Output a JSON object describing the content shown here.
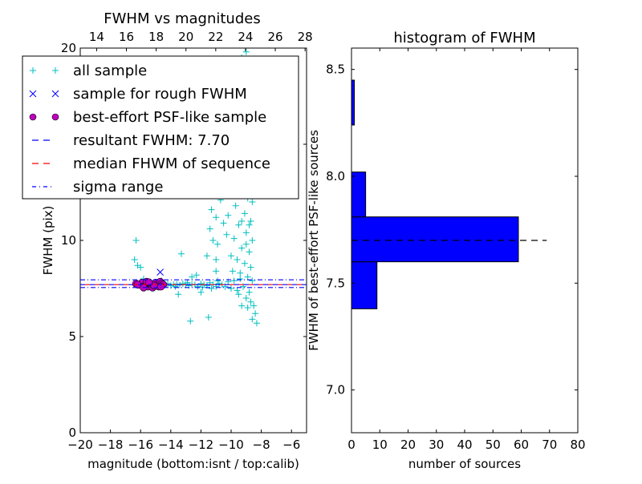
{
  "chart_data": [
    {
      "type": "scatter",
      "title": "FWHM vs magnitudes",
      "xlabel": "magnitude (bottom:isnt / top:calib)",
      "ylabel": "FWHM (pix)",
      "xlim": [
        -20,
        -5
      ],
      "ylim": [
        0,
        20
      ],
      "top_xlim": [
        12.9,
        28.1
      ],
      "xticks": [
        "−20",
        "−18",
        "−16",
        "−14",
        "−12",
        "−10",
        "−8",
        "−6"
      ],
      "xtick_values": [
        -20,
        -18,
        -16,
        -14,
        -12,
        -10,
        -8,
        -6
      ],
      "top_xticks": [
        "14",
        "16",
        "18",
        "20",
        "22",
        "24",
        "26",
        "28"
      ],
      "top_xtick_values": [
        14,
        16,
        18,
        20,
        22,
        24,
        26,
        28
      ],
      "yticks": [
        "0",
        "5",
        "10",
        "15",
        "20"
      ],
      "ytick_values": [
        0,
        5,
        10,
        15,
        20
      ],
      "legend_placement": "upper-left",
      "legend": [
        {
          "label": "all sample",
          "marker": "+",
          "color": "#00bfbf"
        },
        {
          "label": "sample for rough FWHM",
          "marker": "x",
          "color": "#0000ff"
        },
        {
          "label": "best-effort PSF-like sample",
          "marker": "o",
          "color": "#bf00bf"
        },
        {
          "label": "resultant FWHM: 7.70",
          "marker": "dashed",
          "color": "#0000ff"
        },
        {
          "label": "median FHWM of sequence",
          "marker": "dashed",
          "color": "#ff0000"
        },
        {
          "label": "sigma range",
          "marker": "dashdot",
          "color": "#0000ff"
        }
      ],
      "hlines": {
        "resultant": 7.7,
        "median": 7.7,
        "sigma_low": 7.55,
        "sigma_high": 7.95
      },
      "series": [
        {
          "name": "all sample",
          "color": "#00bfbf",
          "points": [
            [
              -16.3,
              10.0
            ],
            [
              -16.4,
              9.0
            ],
            [
              -16.2,
              8.7
            ],
            [
              -16.0,
              8.6
            ],
            [
              -15.8,
              8.0
            ],
            [
              -13.3,
              9.3
            ],
            [
              -12.7,
              5.8
            ],
            [
              -11.5,
              6.0
            ],
            [
              -13.5,
              7.2
            ],
            [
              -14.6,
              7.9
            ],
            [
              -12.0,
              7.3
            ],
            [
              -11.0,
              8.4
            ],
            [
              -12.3,
              8.2
            ],
            [
              -12.6,
              8.1
            ],
            [
              -14.4,
              7.7
            ],
            [
              -14.2,
              7.75
            ],
            [
              -14.0,
              7.65
            ],
            [
              -13.8,
              7.7
            ],
            [
              -13.6,
              7.72
            ],
            [
              -13.4,
              7.68
            ],
            [
              -13.2,
              7.75
            ],
            [
              -13.0,
              7.7
            ],
            [
              -12.8,
              7.65
            ],
            [
              -12.6,
              7.72
            ],
            [
              -12.4,
              7.7
            ],
            [
              -12.2,
              7.6
            ],
            [
              -12.0,
              7.75
            ],
            [
              -11.8,
              7.7
            ],
            [
              -11.6,
              7.65
            ],
            [
              -11.4,
              7.8
            ],
            [
              -11.2,
              7.7
            ],
            [
              -11.0,
              7.6
            ],
            [
              -10.8,
              7.75
            ],
            [
              -10.6,
              7.7
            ],
            [
              -10.4,
              7.6
            ],
            [
              -10.2,
              7.85
            ],
            [
              -10.0,
              7.5
            ],
            [
              -9.8,
              7.9
            ],
            [
              -9.6,
              7.4
            ],
            [
              -9.4,
              8.0
            ],
            [
              -11.9,
              7.55
            ],
            [
              -12.9,
              7.8
            ],
            [
              -13.7,
              7.6
            ],
            [
              -10.9,
              7.9
            ],
            [
              -11.3,
              7.5
            ],
            [
              -12.4,
              12.4
            ],
            [
              -11.7,
              12.4
            ],
            [
              -11.3,
              11.6
            ],
            [
              -11.0,
              11.2
            ],
            [
              -10.7,
              12.1
            ],
            [
              -11.4,
              10.6
            ],
            [
              -11.2,
              10.0
            ],
            [
              -10.9,
              9.8
            ],
            [
              -10.5,
              10.9
            ],
            [
              -11.6,
              9.2
            ],
            [
              -11.0,
              9.0
            ],
            [
              -10.0,
              18.0
            ],
            [
              -9.8,
              17.5
            ],
            [
              -9.3,
              19.5
            ],
            [
              -9.0,
              19.8
            ],
            [
              -8.9,
              18.4
            ],
            [
              -9.6,
              16.8
            ],
            [
              -9.2,
              16.3
            ],
            [
              -8.7,
              17.0
            ],
            [
              -10.3,
              15.8
            ],
            [
              -9.5,
              15.2
            ],
            [
              -9.0,
              15.0
            ],
            [
              -8.8,
              14.2
            ],
            [
              -9.8,
              14.0
            ],
            [
              -9.3,
              13.6
            ],
            [
              -8.6,
              13.2
            ],
            [
              -10.1,
              13.0
            ],
            [
              -9.4,
              12.5
            ],
            [
              -8.9,
              12.2
            ],
            [
              -9.7,
              11.8
            ],
            [
              -9.1,
              11.4
            ],
            [
              -8.7,
              11.0
            ],
            [
              -10.2,
              11.3
            ],
            [
              -9.5,
              10.8
            ],
            [
              -9.0,
              10.4
            ],
            [
              -8.6,
              10.0
            ],
            [
              -9.8,
              10.1
            ],
            [
              -9.3,
              9.6
            ],
            [
              -8.8,
              9.4
            ],
            [
              -10.0,
              9.2
            ],
            [
              -9.6,
              9.0
            ],
            [
              -9.1,
              8.8
            ],
            [
              -8.7,
              8.6
            ],
            [
              -9.9,
              8.4
            ],
            [
              -9.4,
              8.3
            ],
            [
              -8.9,
              8.1
            ],
            [
              -8.6,
              7.9
            ],
            [
              -9.2,
              7.6
            ],
            [
              -8.8,
              7.3
            ],
            [
              -9.5,
              7.2
            ],
            [
              -9.0,
              7.0
            ],
            [
              -8.7,
              6.8
            ],
            [
              -9.3,
              6.6
            ],
            [
              -8.9,
              6.5
            ],
            [
              -8.5,
              6.6
            ],
            [
              -8.4,
              6.2
            ],
            [
              -8.6,
              5.9
            ],
            [
              -8.3,
              5.7
            ],
            [
              -9.6,
              12.8
            ],
            [
              -9.2,
              14.6
            ],
            [
              -8.9,
              16.0
            ],
            [
              -9.4,
              17.8
            ],
            [
              -9.7,
              13.3
            ],
            [
              -8.8,
              10.8
            ],
            [
              -9.0,
              9.8
            ],
            [
              -8.6,
              12.0
            ],
            [
              -9.3,
              11.0
            ],
            [
              -10.4,
              12.5
            ],
            [
              -10.6,
              14.1
            ],
            [
              -10.3,
              10.3
            ]
          ]
        },
        {
          "name": "sample for rough FWHM",
          "color": "#0000ff",
          "points": [
            [
              -14.7,
              8.35
            ]
          ]
        },
        {
          "name": "best-effort PSF-like sample",
          "color": "#bf00bf",
          "points": [
            [
              -16.3,
              7.75
            ],
            [
              -16.1,
              7.7
            ],
            [
              -15.9,
              7.8
            ],
            [
              -15.7,
              7.65
            ],
            [
              -15.6,
              7.85
            ],
            [
              -15.5,
              7.6
            ],
            [
              -15.4,
              7.75
            ],
            [
              -15.3,
              7.7
            ],
            [
              -15.2,
              7.55
            ],
            [
              -15.0,
              7.8
            ],
            [
              -14.9,
              7.7
            ],
            [
              -14.8,
              7.6
            ],
            [
              -14.7,
              7.85
            ],
            [
              -14.6,
              7.75
            ],
            [
              -14.5,
              7.7
            ],
            [
              -15.8,
              7.55
            ],
            [
              -15.1,
              7.65
            ],
            [
              -14.65,
              7.6
            ],
            [
              -16.2,
              7.7
            ],
            [
              -15.45,
              7.82
            ]
          ]
        }
      ]
    },
    {
      "type": "bar",
      "orientation": "horizontal",
      "title": "histogram of FWHM",
      "xlabel": "number of sources",
      "ylabel": "FWHM of best-effort PSF-like sources",
      "xlim": [
        0,
        80
      ],
      "ylim": [
        6.8,
        8.6
      ],
      "xticks": [
        "0",
        "10",
        "20",
        "30",
        "40",
        "50",
        "60",
        "70",
        "80"
      ],
      "xtick_values": [
        0,
        10,
        20,
        30,
        40,
        50,
        60,
        70,
        80
      ],
      "yticks": [
        "7.0",
        "7.5",
        "8.0",
        "8.5"
      ],
      "ytick_values": [
        7.0,
        7.5,
        8.0,
        8.5
      ],
      "bin_edges": [
        7.38,
        7.6,
        7.81,
        8.02,
        8.24,
        8.45
      ],
      "values": [
        9,
        59,
        5,
        0,
        1
      ],
      "bar_color": "#0000ff",
      "hline": {
        "value": 7.7,
        "xmax": 69,
        "color": "#000000"
      }
    }
  ]
}
